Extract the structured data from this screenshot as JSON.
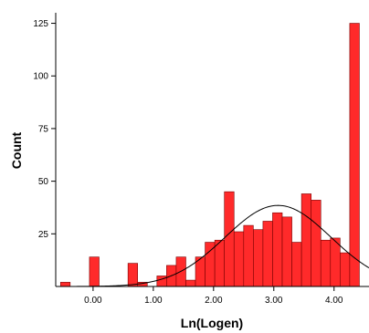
{
  "chart_data": {
    "type": "bar",
    "title": "",
    "xlabel": "Ln(Logen)",
    "ylabel": "Count",
    "xlim": [
      -0.62,
      4.58
    ],
    "ylim": [
      0,
      130
    ],
    "grid": false,
    "legend": "none",
    "bar_color": "#ff2a2a",
    "bar_edge_color": "#7a0000",
    "curve_color": "#000000",
    "x_ticks": [
      {
        "value": 0.0,
        "label": "0.00"
      },
      {
        "value": 1.0,
        "label": "1.00"
      },
      {
        "value": 2.0,
        "label": "2.00"
      },
      {
        "value": 3.0,
        "label": "3.00"
      },
      {
        "value": 4.0,
        "label": "4.00"
      }
    ],
    "y_ticks": [
      {
        "value": 25,
        "label": "25"
      },
      {
        "value": 50,
        "label": "50"
      },
      {
        "value": 75,
        "label": "75"
      },
      {
        "value": 100,
        "label": "100"
      },
      {
        "value": 125,
        "label": "125"
      }
    ],
    "bin_width": 0.16,
    "bins": [
      {
        "x": -0.54,
        "count": 2
      },
      {
        "x": -0.06,
        "count": 14
      },
      {
        "x": 0.58,
        "count": 11
      },
      {
        "x": 0.74,
        "count": 2
      },
      {
        "x": 1.06,
        "count": 5
      },
      {
        "x": 1.22,
        "count": 10
      },
      {
        "x": 1.38,
        "count": 14
      },
      {
        "x": 1.54,
        "count": 3
      },
      {
        "x": 1.7,
        "count": 14
      },
      {
        "x": 1.86,
        "count": 21
      },
      {
        "x": 2.02,
        "count": 22
      },
      {
        "x": 2.18,
        "count": 45
      },
      {
        "x": 2.34,
        "count": 26
      },
      {
        "x": 2.5,
        "count": 29
      },
      {
        "x": 2.66,
        "count": 27
      },
      {
        "x": 2.82,
        "count": 31
      },
      {
        "x": 2.98,
        "count": 35
      },
      {
        "x": 3.14,
        "count": 33
      },
      {
        "x": 3.3,
        "count": 21
      },
      {
        "x": 3.46,
        "count": 44
      },
      {
        "x": 3.62,
        "count": 41
      },
      {
        "x": 3.78,
        "count": 22
      },
      {
        "x": 3.94,
        "count": 23
      },
      {
        "x": 4.1,
        "count": 16
      },
      {
        "x": 4.26,
        "count": 125
      }
    ],
    "normal_curve": {
      "mean": 3.07,
      "peak": 38.5,
      "sd": 0.88
    }
  }
}
